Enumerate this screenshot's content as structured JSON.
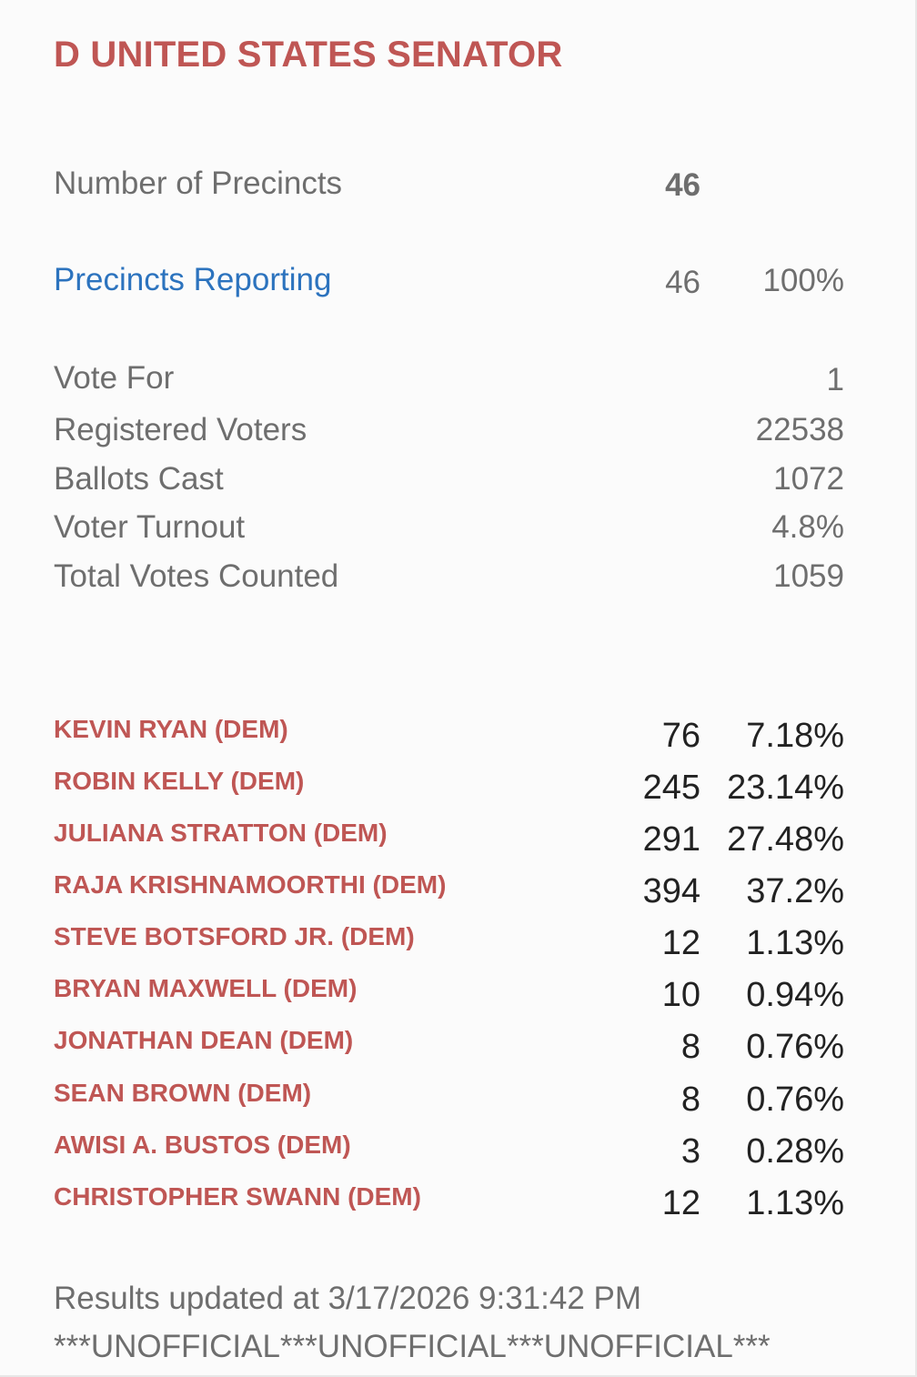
{
  "contest": {
    "title": "D UNITED STATES SENATOR"
  },
  "precincts": {
    "number_label": "Number of Precincts",
    "number_value": "46",
    "reporting_label": "Precincts Reporting",
    "reporting_value": "46",
    "reporting_percent": "100%"
  },
  "stats": {
    "vote_for_label": "Vote For",
    "vote_for_value": "1",
    "registered_label": "Registered Voters",
    "registered_value": "22538",
    "ballots_label": "Ballots Cast",
    "ballots_value": "1072",
    "turnout_label": "Voter Turnout",
    "turnout_value": "4.8%",
    "total_label": "Total Votes Counted",
    "total_value": "1059"
  },
  "candidates": [
    {
      "name": "KEVIN RYAN (DEM)",
      "votes": "76",
      "percent": "7.18%"
    },
    {
      "name": "ROBIN KELLY (DEM)",
      "votes": "245",
      "percent": "23.14%"
    },
    {
      "name": "JULIANA STRATTON (DEM)",
      "votes": "291",
      "percent": "27.48%"
    },
    {
      "name": "RAJA KRISHNAMOORTHI (DEM)",
      "votes": "394",
      "percent": "37.2%"
    },
    {
      "name": "STEVE BOTSFORD JR. (DEM)",
      "votes": "12",
      "percent": "1.13%"
    },
    {
      "name": "BRYAN MAXWELL (DEM)",
      "votes": "10",
      "percent": "0.94%"
    },
    {
      "name": "JONATHAN DEAN (DEM)",
      "votes": "8",
      "percent": "0.76%"
    },
    {
      "name": "SEAN BROWN (DEM)",
      "votes": "8",
      "percent": "0.76%"
    },
    {
      "name": "AWISI A. BUSTOS (DEM)",
      "votes": "3",
      "percent": "0.28%"
    },
    {
      "name": "CHRISTOPHER SWANN (DEM)",
      "votes": "12",
      "percent": "1.13%"
    }
  ],
  "footer": {
    "updated": "Results updated at 3/17/2026 9:31:42 PM",
    "unofficial": "***UNOFFICIAL***UNOFFICIAL***UNOFFICIAL***"
  },
  "colors": {
    "title_red": "#bf5654",
    "link_blue": "#2c73be",
    "label_gray": "#6e6e6e",
    "value_dark": "#222222"
  }
}
